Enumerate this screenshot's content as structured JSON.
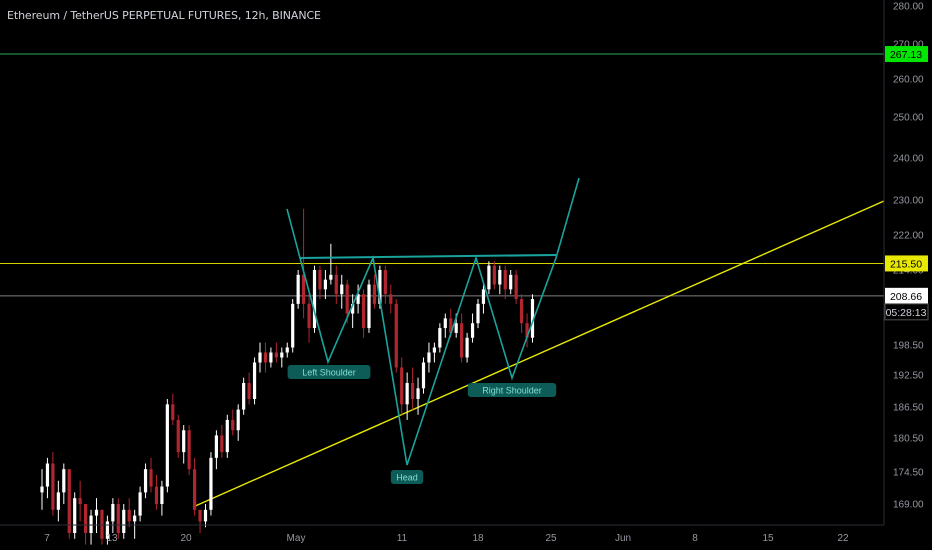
{
  "chart_title": "Ethereum / TetherUS PERPETUAL FUTURES, 12h, BINANCE",
  "chart_data": {
    "type": "candlestick",
    "title": "Ethereum / TetherUS PERPETUAL FUTURES, 12h, BINANCE",
    "y_ticks": [
      "280.00",
      "270.00",
      "260.00",
      "250.00",
      "240.00",
      "230.00",
      "222.00",
      "214.00",
      "198.50",
      "192.50",
      "186.50",
      "180.50",
      "174.50",
      "169.00"
    ],
    "x_ticks": [
      "7",
      "13",
      "20",
      "May",
      "11",
      "18",
      "25",
      "Jun",
      "8",
      "15",
      "22"
    ],
    "price_tags": [
      {
        "label": "267.13",
        "value": 267.13,
        "color": "#00e600"
      },
      {
        "label": "215.50",
        "value": 215.5,
        "color": "#e8e800"
      },
      {
        "label": "208.66",
        "value": 208.66,
        "color": "#ffffff"
      }
    ],
    "countdown": "05:28:13",
    "horizontal_levels": [
      {
        "value": 267.13,
        "color": "#2fa84f"
      },
      {
        "value": 215.5,
        "color": "#d4d400"
      },
      {
        "value": 208.66,
        "color": "#7f7f7f"
      }
    ],
    "pattern_labels": [
      "Left Shoulder",
      "Head",
      "Right Shoulder"
    ],
    "colors": {
      "up": "#ffffff",
      "down": "#b2262f",
      "pattern": "#1aa39c",
      "trendline": "#e8e800"
    },
    "candles": [
      [
        171,
        175,
        168,
        172
      ],
      [
        172,
        177,
        170,
        176
      ],
      [
        176,
        178,
        167,
        168
      ],
      [
        168,
        173,
        166,
        171
      ],
      [
        171,
        176,
        169,
        175
      ],
      [
        175,
        175,
        163,
        164
      ],
      [
        164,
        171,
        163,
        170
      ],
      [
        170,
        173,
        166,
        169
      ],
      [
        169,
        169,
        162,
        164
      ],
      [
        164,
        168,
        162,
        167
      ],
      [
        167,
        170,
        164,
        168
      ],
      [
        168,
        168,
        162,
        163
      ],
      [
        163,
        167,
        162,
        166
      ],
      [
        166,
        170,
        164,
        169
      ],
      [
        169,
        170,
        163,
        164
      ],
      [
        164,
        169,
        163,
        168
      ],
      [
        168,
        170,
        165,
        166
      ],
      [
        166,
        168,
        163,
        167
      ],
      [
        167,
        172,
        166,
        171
      ],
      [
        171,
        176,
        170,
        175
      ],
      [
        175,
        177,
        171,
        172
      ],
      [
        172,
        174,
        168,
        169
      ],
      [
        169,
        173,
        167,
        172
      ],
      [
        172,
        188,
        171,
        187
      ],
      [
        187,
        189,
        183,
        184
      ],
      [
        184,
        185,
        177,
        178
      ],
      [
        178,
        183,
        176,
        182
      ],
      [
        182,
        183,
        174,
        175
      ],
      [
        175,
        177,
        167,
        168
      ],
      [
        168,
        168,
        164,
        166
      ],
      [
        166,
        169,
        165,
        168
      ],
      [
        168,
        178,
        167,
        177
      ],
      [
        177,
        182,
        175,
        181
      ],
      [
        181,
        183,
        177,
        178
      ],
      [
        178,
        185,
        177,
        184
      ],
      [
        184,
        186,
        181,
        182
      ],
      [
        182,
        187,
        180,
        186
      ],
      [
        186,
        192,
        185,
        191
      ],
      [
        191,
        193,
        187,
        188
      ],
      [
        188,
        196,
        187,
        195
      ],
      [
        195,
        199,
        193,
        197
      ],
      [
        197,
        199,
        193,
        195
      ],
      [
        195,
        198,
        194,
        197
      ],
      [
        197,
        199,
        195,
        196
      ],
      [
        196,
        198,
        194,
        197
      ],
      [
        197,
        199,
        196,
        198
      ],
      [
        198,
        208,
        197,
        207
      ],
      [
        207,
        214,
        206,
        213
      ],
      [
        213,
        228,
        204,
        207
      ],
      [
        207,
        210,
        199,
        202
      ],
      [
        202,
        215,
        201,
        214
      ],
      [
        214,
        215,
        208,
        210
      ],
      [
        210,
        214,
        208,
        212
      ],
      [
        212,
        220,
        211,
        213
      ],
      [
        213,
        215,
        207,
        209
      ],
      [
        209,
        213,
        206,
        211
      ],
      [
        211,
        212,
        203,
        205
      ],
      [
        205,
        209,
        202,
        207
      ],
      [
        207,
        211,
        205,
        209
      ],
      [
        209,
        210,
        200,
        202
      ],
      [
        202,
        212,
        201,
        211
      ],
      [
        211,
        213,
        206,
        207
      ],
      [
        207,
        215,
        206,
        214
      ],
      [
        214,
        215,
        207,
        209
      ],
      [
        209,
        211,
        205,
        207
      ],
      [
        207,
        208,
        193,
        194
      ],
      [
        194,
        196,
        185,
        187
      ],
      [
        187,
        193,
        184,
        191
      ],
      [
        191,
        194,
        186,
        188
      ],
      [
        188,
        192,
        185,
        190
      ],
      [
        190,
        196,
        189,
        195
      ],
      [
        195,
        199,
        193,
        197
      ],
      [
        197,
        199,
        195,
        198
      ],
      [
        198,
        203,
        197,
        202
      ],
      [
        202,
        205,
        200,
        204
      ],
      [
        204,
        206,
        200,
        201
      ],
      [
        201,
        205,
        200,
        203
      ],
      [
        203,
        205,
        195,
        196
      ],
      [
        196,
        201,
        195,
        200
      ],
      [
        200,
        205,
        199,
        203
      ],
      [
        203,
        208,
        202,
        207
      ],
      [
        207,
        211,
        205,
        210
      ],
      [
        210,
        216,
        209,
        215
      ],
      [
        215,
        216,
        210,
        211
      ],
      [
        211,
        215,
        209,
        214
      ],
      [
        214,
        215,
        208,
        210
      ],
      [
        210,
        214,
        209,
        213
      ],
      [
        213,
        214,
        207,
        208
      ],
      [
        208,
        209,
        201,
        203
      ],
      [
        203,
        205,
        198,
        200
      ],
      [
        200,
        209,
        199,
        208
      ]
    ]
  }
}
